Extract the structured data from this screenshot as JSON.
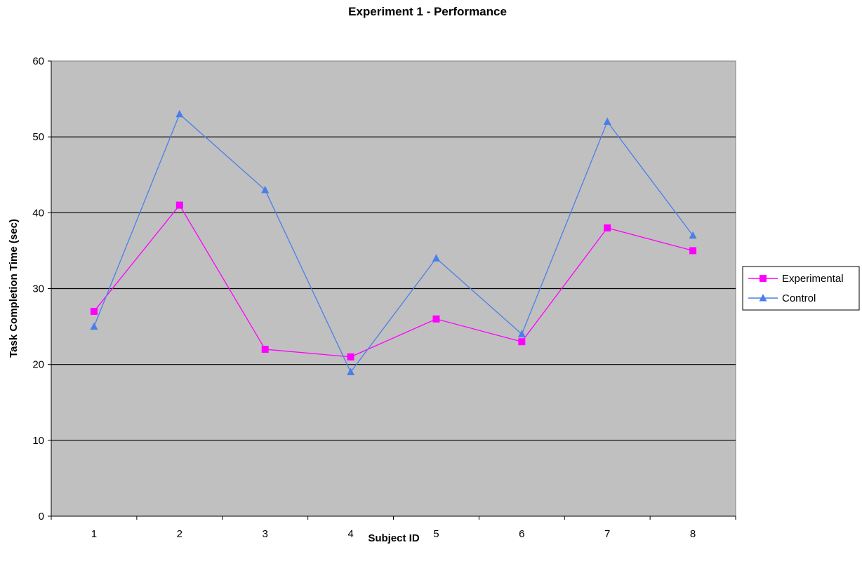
{
  "chart_data": {
    "type": "line",
    "title": "Experiment 1 - Performance",
    "xlabel": "Subject ID",
    "ylabel": "Task Completion Time (sec)",
    "categories": [
      "1",
      "2",
      "3",
      "4",
      "5",
      "6",
      "7",
      "8"
    ],
    "ylim": [
      0,
      60
    ],
    "yticks": [
      0,
      10,
      20,
      30,
      40,
      50,
      60
    ],
    "grid": true,
    "legend_position": "right",
    "plot_background": "#c0c0c0",
    "series": [
      {
        "name": "Experimental",
        "color": "#ff00ff",
        "marker": "square",
        "values": [
          27,
          41,
          22,
          21,
          26,
          23,
          38,
          35
        ]
      },
      {
        "name": "Control",
        "color": "#4a7fea",
        "marker": "triangle",
        "values": [
          25,
          53,
          43,
          19,
          34,
          24,
          52,
          37
        ]
      }
    ]
  }
}
